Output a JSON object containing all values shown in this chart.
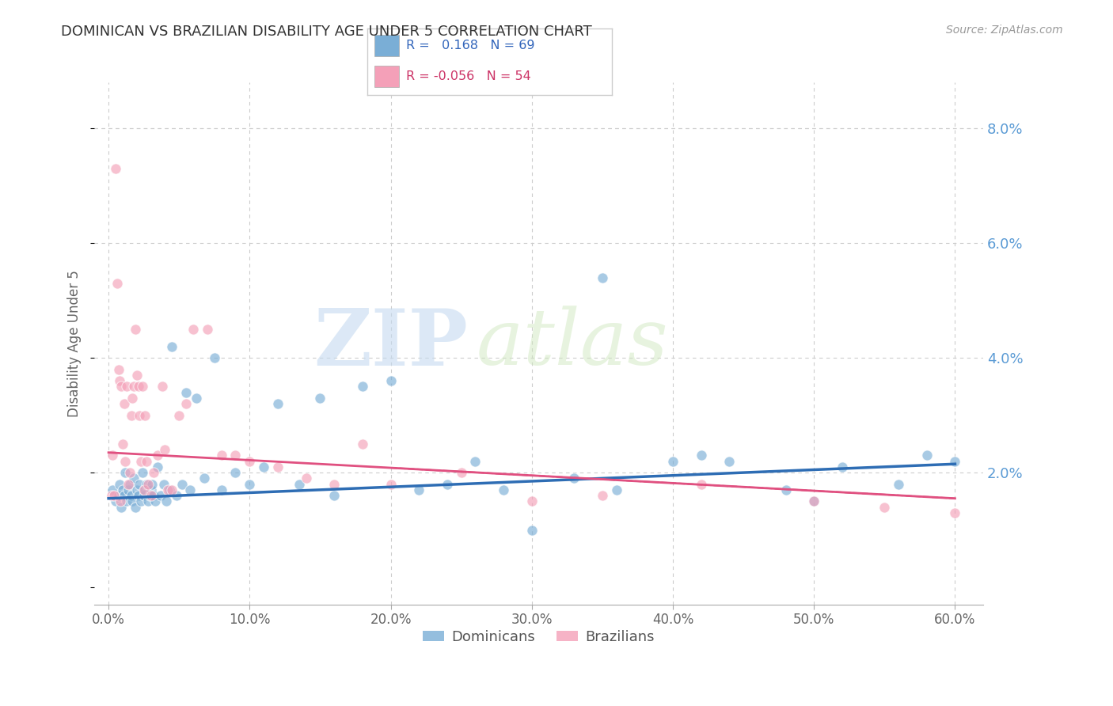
{
  "title": "DOMINICAN VS BRAZILIAN DISABILITY AGE UNDER 5 CORRELATION CHART",
  "source": "Source: ZipAtlas.com",
  "ylabel": "Disability Age Under 5",
  "x_tick_labels": [
    "0.0%",
    "10.0%",
    "20.0%",
    "30.0%",
    "40.0%",
    "50.0%",
    "60.0%"
  ],
  "x_ticks": [
    0.0,
    10.0,
    20.0,
    30.0,
    40.0,
    50.0,
    60.0
  ],
  "y_tick_labels_right": [
    "2.0%",
    "4.0%",
    "6.0%",
    "8.0%"
  ],
  "y_ticks_right": [
    2.0,
    4.0,
    6.0,
    8.0
  ],
  "xlim": [
    -1.0,
    62.0
  ],
  "ylim": [
    -0.3,
    8.8
  ],
  "dominican_color": "#7aaed6",
  "brazilian_color": "#f4a0b8",
  "dominican_R": 0.168,
  "dominican_N": 69,
  "brazilian_R": -0.056,
  "brazilian_N": 54,
  "background_color": "#ffffff",
  "grid_color": "#cccccc",
  "title_color": "#333333",
  "tick_color_right": "#5b9bd5",
  "watermark_zip": "ZIP",
  "watermark_atlas": "atlas",
  "dominican_line_start_y": 1.55,
  "dominican_line_end_y": 2.15,
  "brazilian_line_start_y": 2.35,
  "brazilian_line_end_y": 1.55,
  "dominican_points_x": [
    0.3,
    0.5,
    0.7,
    0.8,
    0.9,
    1.0,
    1.1,
    1.2,
    1.3,
    1.4,
    1.5,
    1.6,
    1.7,
    1.8,
    1.9,
    2.0,
    2.1,
    2.2,
    2.3,
    2.4,
    2.5,
    2.6,
    2.7,
    2.8,
    2.9,
    3.0,
    3.1,
    3.2,
    3.3,
    3.5,
    3.7,
    3.9,
    4.1,
    4.3,
    4.5,
    4.8,
    5.2,
    5.5,
    5.8,
    6.2,
    6.8,
    7.5,
    8.0,
    9.0,
    10.0,
    11.0,
    12.0,
    13.5,
    15.0,
    16.0,
    18.0,
    20.0,
    22.0,
    24.0,
    26.0,
    28.0,
    30.0,
    33.0,
    36.0,
    40.0,
    44.0,
    48.0,
    52.0,
    56.0,
    60.0,
    35.0,
    42.0,
    58.0,
    50.0
  ],
  "dominican_points_y": [
    1.7,
    1.5,
    1.6,
    1.8,
    1.4,
    1.7,
    1.6,
    2.0,
    1.5,
    1.7,
    1.8,
    1.6,
    1.5,
    1.9,
    1.4,
    1.7,
    1.6,
    1.8,
    1.5,
    2.0,
    1.6,
    1.7,
    1.8,
    1.5,
    1.6,
    1.7,
    1.8,
    1.6,
    1.5,
    2.1,
    1.6,
    1.8,
    1.5,
    1.7,
    4.2,
    1.6,
    1.8,
    3.4,
    1.7,
    3.3,
    1.9,
    4.0,
    1.7,
    2.0,
    1.8,
    2.1,
    3.2,
    1.8,
    3.3,
    1.6,
    3.5,
    3.6,
    1.7,
    1.8,
    2.2,
    1.7,
    1.0,
    1.9,
    1.7,
    2.2,
    2.2,
    1.7,
    2.1,
    1.8,
    2.2,
    5.4,
    2.3,
    2.3,
    1.5
  ],
  "brazilian_points_x": [
    0.2,
    0.3,
    0.5,
    0.6,
    0.7,
    0.8,
    0.9,
    1.0,
    1.1,
    1.2,
    1.3,
    1.4,
    1.5,
    1.6,
    1.7,
    1.8,
    1.9,
    2.0,
    2.1,
    2.2,
    2.3,
    2.4,
    2.5,
    2.6,
    2.7,
    2.8,
    3.0,
    3.2,
    3.5,
    3.8,
    4.0,
    4.2,
    4.5,
    5.0,
    5.5,
    6.0,
    7.0,
    8.0,
    9.0,
    10.0,
    12.0,
    14.0,
    16.0,
    18.0,
    20.0,
    25.0,
    30.0,
    35.0,
    42.0,
    50.0,
    55.0,
    60.0,
    0.4,
    0.85
  ],
  "brazilian_points_y": [
    1.6,
    2.3,
    7.3,
    5.3,
    3.8,
    3.6,
    3.5,
    2.5,
    3.2,
    2.2,
    3.5,
    1.8,
    2.0,
    3.0,
    3.3,
    3.5,
    4.5,
    3.7,
    3.5,
    3.0,
    2.2,
    3.5,
    1.7,
    3.0,
    2.2,
    1.8,
    1.6,
    2.0,
    2.3,
    3.5,
    2.4,
    1.7,
    1.7,
    3.0,
    3.2,
    4.5,
    4.5,
    2.3,
    2.3,
    2.2,
    2.1,
    1.9,
    1.8,
    2.5,
    1.8,
    2.0,
    1.5,
    1.6,
    1.8,
    1.5,
    1.4,
    1.3,
    1.6,
    1.5
  ]
}
